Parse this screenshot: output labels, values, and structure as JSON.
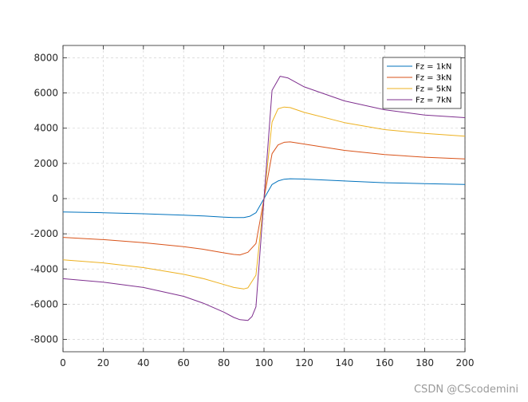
{
  "chart_data": {
    "type": "line",
    "title": "",
    "xlabel": "",
    "ylabel": "",
    "xlim": [
      0,
      200
    ],
    "ylim": [
      -8700,
      8700
    ],
    "xticks": [
      0,
      20,
      40,
      60,
      80,
      100,
      120,
      140,
      160,
      180,
      200
    ],
    "yticks": [
      -8000,
      -6000,
      -4000,
      -2000,
      0,
      2000,
      4000,
      6000,
      8000
    ],
    "grid": true,
    "legend_position": "top-right",
    "series": [
      {
        "name": "Fz = 1kN",
        "color": "#0072BD",
        "points": [
          [
            0,
            -760
          ],
          [
            20,
            -800
          ],
          [
            40,
            -860
          ],
          [
            60,
            -940
          ],
          [
            70,
            -990
          ],
          [
            80,
            -1050
          ],
          [
            85,
            -1080
          ],
          [
            90,
            -1080
          ],
          [
            93,
            -1000
          ],
          [
            96,
            -800
          ],
          [
            100,
            0
          ],
          [
            104,
            800
          ],
          [
            107,
            1000
          ],
          [
            110,
            1100
          ],
          [
            113,
            1130
          ],
          [
            120,
            1110
          ],
          [
            140,
            1000
          ],
          [
            160,
            900
          ],
          [
            180,
            850
          ],
          [
            200,
            800
          ]
        ]
      },
      {
        "name": "Fz = 3kN",
        "color": "#D95319",
        "points": [
          [
            0,
            -2200
          ],
          [
            20,
            -2330
          ],
          [
            40,
            -2500
          ],
          [
            60,
            -2730
          ],
          [
            70,
            -2880
          ],
          [
            80,
            -3080
          ],
          [
            85,
            -3170
          ],
          [
            88,
            -3200
          ],
          [
            92,
            -3050
          ],
          [
            96,
            -2550
          ],
          [
            100,
            0
          ],
          [
            104,
            2550
          ],
          [
            107,
            3050
          ],
          [
            110,
            3200
          ],
          [
            113,
            3220
          ],
          [
            120,
            3100
          ],
          [
            140,
            2740
          ],
          [
            160,
            2500
          ],
          [
            180,
            2350
          ],
          [
            200,
            2250
          ]
        ]
      },
      {
        "name": "Fz = 5kN",
        "color": "#EDB120",
        "points": [
          [
            0,
            -3480
          ],
          [
            20,
            -3650
          ],
          [
            40,
            -3920
          ],
          [
            60,
            -4300
          ],
          [
            70,
            -4550
          ],
          [
            80,
            -4880
          ],
          [
            85,
            -5050
          ],
          [
            90,
            -5130
          ],
          [
            92,
            -5070
          ],
          [
            96,
            -4350
          ],
          [
            100,
            0
          ],
          [
            104,
            4350
          ],
          [
            107,
            5100
          ],
          [
            110,
            5200
          ],
          [
            113,
            5170
          ],
          [
            120,
            4900
          ],
          [
            140,
            4320
          ],
          [
            160,
            3920
          ],
          [
            180,
            3700
          ],
          [
            200,
            3550
          ]
        ]
      },
      {
        "name": "Fz = 7kN",
        "color": "#7E2F8E",
        "points": [
          [
            0,
            -4550
          ],
          [
            20,
            -4750
          ],
          [
            40,
            -5050
          ],
          [
            60,
            -5550
          ],
          [
            70,
            -5950
          ],
          [
            80,
            -6450
          ],
          [
            85,
            -6750
          ],
          [
            88,
            -6880
          ],
          [
            92,
            -6920
          ],
          [
            94,
            -6700
          ],
          [
            96,
            -6150
          ],
          [
            100,
            0
          ],
          [
            104,
            6150
          ],
          [
            108,
            6950
          ],
          [
            112,
            6850
          ],
          [
            120,
            6350
          ],
          [
            140,
            5550
          ],
          [
            160,
            5050
          ],
          [
            180,
            4750
          ],
          [
            200,
            4600
          ]
        ]
      }
    ]
  },
  "watermark": "CSDN @CScodemini"
}
